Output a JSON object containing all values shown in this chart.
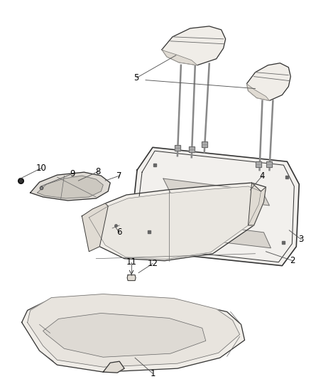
{
  "bg_color": "#ffffff",
  "line_color": "#666666",
  "dark_line": "#333333",
  "fill_light": "#f0ede8",
  "fill_medium": "#e0dbd3",
  "fill_dark": "#c8c4bc",
  "label_fontsize": 8.5
}
